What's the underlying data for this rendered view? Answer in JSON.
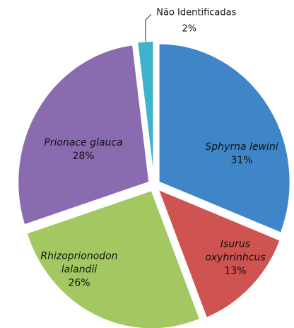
{
  "chart_data": {
    "type": "pie",
    "categories": [
      "Sphyrna lewini",
      "Isurus oxyhrinhcus",
      "Rhizoprionodon lalandii",
      "Prionace glauca",
      "Não Identificadas"
    ],
    "values": [
      31,
      13,
      26,
      28,
      2
    ],
    "value_labels": [
      "31%",
      "13%",
      "26%",
      "28%",
      "2%"
    ],
    "colors": [
      "#3f86c9",
      "#cf5350",
      "#a3c862",
      "#8a6bb0",
      "#3fb2cc"
    ]
  }
}
